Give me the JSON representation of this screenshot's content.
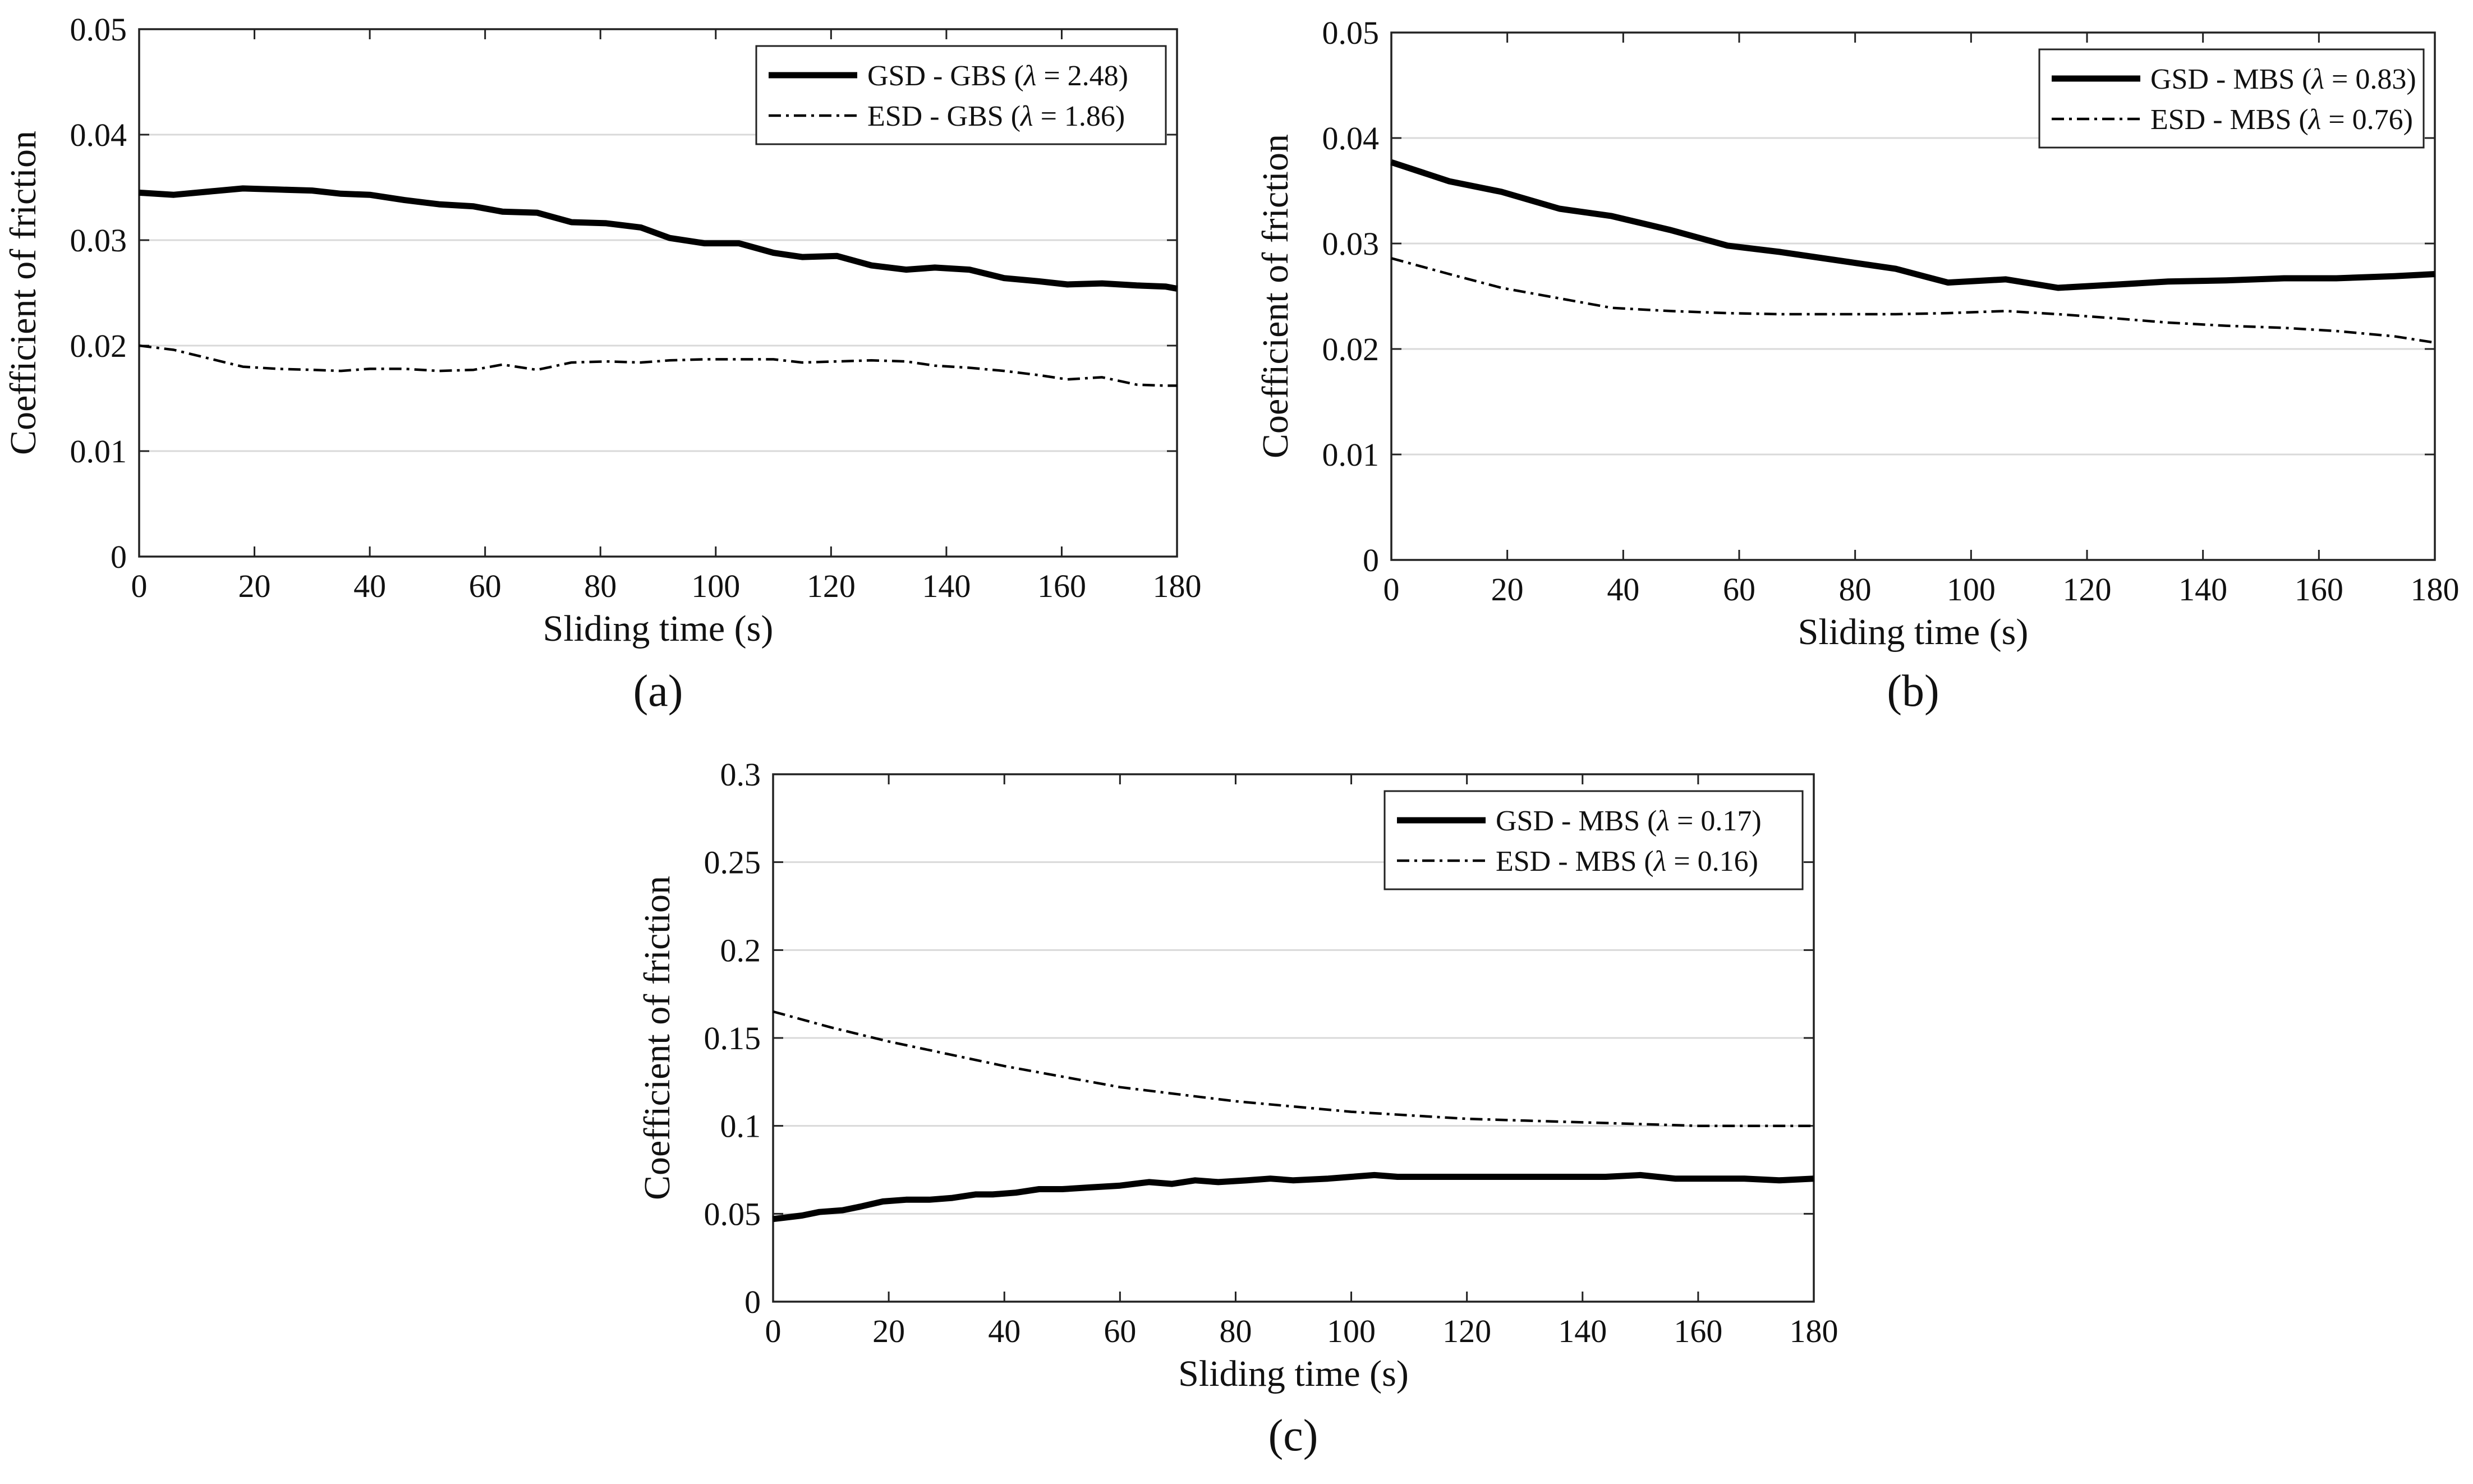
{
  "chart_data": [
    {
      "type": "line",
      "panel_label": "(a)",
      "xlabel": "Sliding time (s)",
      "ylabel": "Coefficient of friction",
      "xlim": [
        0,
        180
      ],
      "ylim": [
        0,
        0.05
      ],
      "xticks": [
        "0",
        "20",
        "40",
        "60",
        "80",
        "100",
        "120",
        "140",
        "160",
        "180"
      ],
      "yticks": [
        "0",
        "0.01",
        "0.02",
        "0.03",
        "0.04",
        "0.05"
      ],
      "grid": true,
      "legend_position": "top-right",
      "series": [
        {
          "name": "GSD - GBS",
          "lambda": "2.48",
          "style": "solid",
          "x": [
            0,
            6,
            12,
            18,
            24,
            30,
            35,
            40,
            46,
            52,
            58,
            63,
            69,
            75,
            81,
            87,
            92,
            98,
            104,
            110,
            115,
            121,
            127,
            133,
            138,
            144,
            150,
            156,
            161,
            167,
            173,
            178,
            180
          ],
          "y": [
            0.0345,
            0.0343,
            0.0346,
            0.0349,
            0.0348,
            0.0347,
            0.0344,
            0.0343,
            0.0338,
            0.0334,
            0.0332,
            0.0327,
            0.0326,
            0.0317,
            0.0316,
            0.0312,
            0.0302,
            0.0297,
            0.0297,
            0.0288,
            0.0284,
            0.0285,
            0.0276,
            0.0272,
            0.0274,
            0.0272,
            0.0264,
            0.0261,
            0.0258,
            0.0259,
            0.0257,
            0.0256,
            0.0254
          ]
        },
        {
          "name": "ESD - GBS",
          "lambda": "1.86",
          "style": "dashdot",
          "x": [
            0,
            6,
            12,
            18,
            24,
            30,
            35,
            40,
            46,
            52,
            58,
            63,
            69,
            75,
            81,
            87,
            92,
            98,
            104,
            110,
            115,
            121,
            127,
            133,
            138,
            144,
            150,
            156,
            161,
            167,
            173,
            178,
            180
          ],
          "y": [
            0.02,
            0.0196,
            0.0188,
            0.018,
            0.0178,
            0.0177,
            0.0176,
            0.0178,
            0.0178,
            0.0176,
            0.0177,
            0.0182,
            0.0177,
            0.0184,
            0.0185,
            0.0184,
            0.0186,
            0.0187,
            0.0187,
            0.0187,
            0.0184,
            0.0185,
            0.0186,
            0.0185,
            0.0181,
            0.0179,
            0.0176,
            0.0172,
            0.0168,
            0.017,
            0.0163,
            0.0162,
            0.0162
          ]
        }
      ]
    },
    {
      "type": "line",
      "panel_label": "(b)",
      "xlabel": "Sliding time (s)",
      "ylabel": "Coefficient of friction",
      "xlim": [
        0,
        180
      ],
      "ylim": [
        0,
        0.05
      ],
      "xticks": [
        "0",
        "20",
        "40",
        "60",
        "80",
        "100",
        "120",
        "140",
        "160",
        "180"
      ],
      "yticks": [
        "0",
        "0.01",
        "0.02",
        "0.03",
        "0.04",
        "0.05"
      ],
      "grid": true,
      "legend_position": "top-right",
      "series": [
        {
          "name": "GSD - MBS",
          "lambda": "0.83",
          "style": "solid",
          "x": [
            0,
            10,
            19,
            29,
            38,
            48,
            58,
            67,
            77,
            87,
            96,
            106,
            115,
            125,
            134,
            144,
            154,
            163,
            173,
            180
          ],
          "y": [
            0.0377,
            0.0359,
            0.0349,
            0.0333,
            0.0326,
            0.0313,
            0.0298,
            0.0292,
            0.0284,
            0.0276,
            0.0263,
            0.0266,
            0.0258,
            0.0261,
            0.0264,
            0.0265,
            0.0267,
            0.0267,
            0.0269,
            0.0271
          ]
        },
        {
          "name": "ESD - MBS",
          "lambda": "0.76",
          "style": "dashdot",
          "x": [
            0,
            10,
            19,
            29,
            38,
            48,
            58,
            67,
            77,
            87,
            96,
            106,
            115,
            125,
            134,
            144,
            154,
            163,
            173,
            180
          ],
          "y": [
            0.0286,
            0.0271,
            0.0258,
            0.0248,
            0.0239,
            0.0236,
            0.0234,
            0.0233,
            0.0233,
            0.0233,
            0.0234,
            0.0236,
            0.0233,
            0.0229,
            0.0225,
            0.0222,
            0.022,
            0.0217,
            0.0212,
            0.0206
          ]
        }
      ]
    },
    {
      "type": "line",
      "panel_label": "(c)",
      "xlabel": "Sliding time (s)",
      "ylabel": "Coefficient of friction",
      "xlim": [
        0,
        180
      ],
      "ylim": [
        0,
        0.3
      ],
      "xticks": [
        "0",
        "20",
        "40",
        "60",
        "80",
        "100",
        "120",
        "140",
        "160",
        "180"
      ],
      "yticks": [
        "0",
        "0.05",
        "0.1",
        "0.15",
        "0.2",
        "0.25",
        "0.3"
      ],
      "grid": true,
      "legend_position": "top-right",
      "series": [
        {
          "name": "GSD - MBS",
          "lambda": "0.17",
          "style": "solid",
          "x": [
            0,
            5,
            8,
            12,
            15,
            19,
            23,
            27,
            31,
            35,
            38,
            42,
            46,
            50,
            55,
            60,
            65,
            69,
            73,
            77,
            82,
            86,
            90,
            96,
            100,
            104,
            108,
            113,
            120,
            126,
            132,
            138,
            144,
            150,
            156,
            162,
            168,
            174,
            180
          ],
          "y": [
            0.047,
            0.049,
            0.051,
            0.052,
            0.054,
            0.057,
            0.058,
            0.058,
            0.059,
            0.061,
            0.061,
            0.062,
            0.064,
            0.064,
            0.065,
            0.066,
            0.068,
            0.067,
            0.069,
            0.068,
            0.069,
            0.07,
            0.069,
            0.07,
            0.071,
            0.072,
            0.071,
            0.071,
            0.071,
            0.071,
            0.071,
            0.071,
            0.071,
            0.072,
            0.07,
            0.07,
            0.07,
            0.069,
            0.07
          ]
        },
        {
          "name": "ESD - MBS",
          "lambda": "0.16",
          "style": "dashdot",
          "x": [
            0,
            10,
            20,
            30,
            40,
            50,
            60,
            70,
            80,
            90,
            100,
            110,
            120,
            130,
            140,
            150,
            160,
            170,
            180
          ],
          "y": [
            0.165,
            0.156,
            0.148,
            0.141,
            0.134,
            0.128,
            0.122,
            0.118,
            0.114,
            0.111,
            0.108,
            0.106,
            0.104,
            0.103,
            0.102,
            0.101,
            0.1,
            0.1,
            0.1
          ]
        }
      ]
    }
  ],
  "legend_symbol": "λ"
}
